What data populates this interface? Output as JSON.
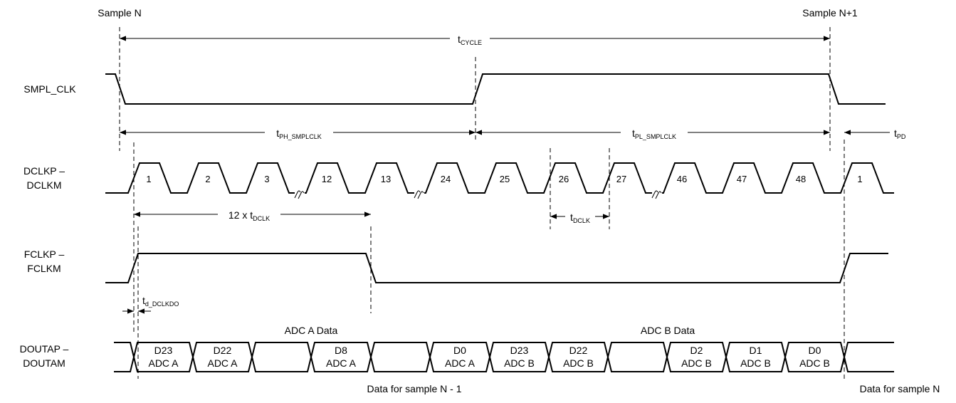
{
  "markers": {
    "sample_n": "Sample N",
    "sample_n1": "Sample N+1"
  },
  "signals": {
    "smpl_clk": "SMPL_CLK",
    "dclk_p": "DCLKP –",
    "dclk_m": "DCLKM",
    "fclk_p": "FCLKP –",
    "fclk_m": "FCLKM",
    "dout_p": "DOUTAP –",
    "dout_m": "DOUTAM"
  },
  "timing": {
    "cycle": {
      "main": "t",
      "sub": "CYCLE"
    },
    "ph": {
      "main": "t",
      "sub": "PH_SMPLCLK"
    },
    "pl": {
      "main": "t",
      "sub": "PL_SMPLCLK"
    },
    "pd": {
      "main": "t",
      "sub": "PD"
    },
    "dclk12": {
      "main": "12 x t",
      "sub": "DCLK"
    },
    "dclk": {
      "main": "t",
      "sub": "DCLK"
    },
    "dclkdo": {
      "main": "t",
      "sub": "d_DCLKDO"
    }
  },
  "clock_numbers": [
    "1",
    "2",
    "3",
    "12",
    "13",
    "24",
    "25",
    "26",
    "27",
    "46",
    "47",
    "48",
    "1"
  ],
  "group_labels": {
    "adc_a": "ADC A Data",
    "adc_b": "ADC B Data"
  },
  "data_cells": [
    {
      "bit": "D23",
      "ch": "ADC A"
    },
    {
      "bit": "D22",
      "ch": "ADC A"
    },
    {
      "bit": "",
      "ch": ""
    },
    {
      "bit": "D8",
      "ch": "ADC A"
    },
    {
      "bit": "",
      "ch": ""
    },
    {
      "bit": "D0",
      "ch": "ADC A"
    },
    {
      "bit": "D23",
      "ch": "ADC B"
    },
    {
      "bit": "D22",
      "ch": "ADC B"
    },
    {
      "bit": "",
      "ch": ""
    },
    {
      "bit": "D2",
      "ch": "ADC B"
    },
    {
      "bit": "D1",
      "ch": "ADC B"
    },
    {
      "bit": "D0",
      "ch": "ADC B"
    }
  ],
  "footer": {
    "prev": "Data for sample N - 1",
    "curr": "Data for sample N"
  }
}
